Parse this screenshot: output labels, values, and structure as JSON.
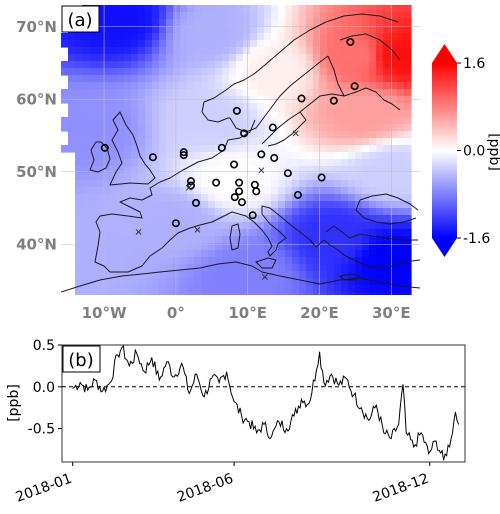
{
  "figure": {
    "panel_a_tag": "(a)",
    "panel_b_tag": "(b)"
  },
  "chart_data": [
    {
      "type": "heatmap",
      "panel": "(a)",
      "map_region": "Europe",
      "title": "",
      "xlabel": "",
      "ylabel": "",
      "lon_range": [
        -16,
        34
      ],
      "lat_range": [
        33,
        73
      ],
      "lon_ticks": [
        {
          "value": -10,
          "label": "10°W"
        },
        {
          "value": 0,
          "label": "0°"
        },
        {
          "value": 10,
          "label": "10°E"
        },
        {
          "value": 20,
          "label": "20°E"
        },
        {
          "value": 30,
          "label": "30°E"
        }
      ],
      "lat_ticks": [
        {
          "value": 40,
          "label": "40°N"
        },
        {
          "value": 50,
          "label": "50°N"
        },
        {
          "value": 60,
          "label": "60°N"
        },
        {
          "value": 70,
          "label": "70°N"
        }
      ],
      "grid": true,
      "colorbar": {
        "label": "[ppb]",
        "min": -1.6,
        "max": 1.6,
        "ticks": [
          {
            "value": 1.6,
            "label": "1.6"
          },
          {
            "value": 0.0,
            "label": "0.0"
          },
          {
            "value": -1.6,
            "label": "-1.6"
          }
        ],
        "colormap": "bwr",
        "colors": {
          "low": "#0000ff",
          "mid": "#ffffff",
          "high": "#ff0000"
        },
        "extend": "both",
        "placement": "right"
      },
      "field_description_points": [
        {
          "lon": -8,
          "lat": 71,
          "value": -1.5
        },
        {
          "lon": 5,
          "lat": 69,
          "value": -0.5
        },
        {
          "lon": 14,
          "lat": 64,
          "value": 0.1
        },
        {
          "lon": 25,
          "lat": 66,
          "value": 0.9
        },
        {
          "lon": 31,
          "lat": 66,
          "value": 1.5
        },
        {
          "lon": 26,
          "lat": 58,
          "value": 0.6
        },
        {
          "lon": 5,
          "lat": 57,
          "value": -0.3
        },
        {
          "lon": -12,
          "lat": 56,
          "value": -0.7
        },
        {
          "lon": 8,
          "lat": 49,
          "value": 0.0
        },
        {
          "lon": 30,
          "lat": 50,
          "value": -0.3
        },
        {
          "lon": 0,
          "lat": 43,
          "value": -0.5
        },
        {
          "lon": 22,
          "lat": 41,
          "value": -1.3
        },
        {
          "lon": 30,
          "lat": 38,
          "value": -1.6
        },
        {
          "lon": 10,
          "lat": 36,
          "value": -0.8
        },
        {
          "lon": -14,
          "lat": 38,
          "value": -0.5
        }
      ],
      "stations_circle": [
        {
          "lon": 24.3,
          "lat": 67.9
        },
        {
          "lon": 24.9,
          "lat": 61.8
        },
        {
          "lon": 17.5,
          "lat": 60.1
        },
        {
          "lon": 22.0,
          "lat": 59.8
        },
        {
          "lon": 8.5,
          "lat": 58.4
        },
        {
          "lon": 13.5,
          "lat": 56.1
        },
        {
          "lon": 9.5,
          "lat": 55.3
        },
        {
          "lon": -9.9,
          "lat": 53.3
        },
        {
          "lon": -3.2,
          "lat": 52.0
        },
        {
          "lon": 1.1,
          "lat": 52.7
        },
        {
          "lon": 1.1,
          "lat": 52.3
        },
        {
          "lon": 6.4,
          "lat": 53.3
        },
        {
          "lon": 11.9,
          "lat": 52.4
        },
        {
          "lon": 13.7,
          "lat": 51.9
        },
        {
          "lon": 8.1,
          "lat": 51.0
        },
        {
          "lon": 15.6,
          "lat": 49.8
        },
        {
          "lon": 2.1,
          "lat": 48.7
        },
        {
          "lon": 2.1,
          "lat": 48.1
        },
        {
          "lon": 5.6,
          "lat": 48.5
        },
        {
          "lon": 8.8,
          "lat": 48.5
        },
        {
          "lon": 11.0,
          "lat": 48.2
        },
        {
          "lon": 11.2,
          "lat": 47.3
        },
        {
          "lon": 8.8,
          "lat": 47.3
        },
        {
          "lon": 8.2,
          "lat": 46.5
        },
        {
          "lon": 9.2,
          "lat": 45.8
        },
        {
          "lon": 17.0,
          "lat": 46.8
        },
        {
          "lon": 20.3,
          "lat": 49.2
        },
        {
          "lon": 2.8,
          "lat": 45.7
        },
        {
          "lon": 10.7,
          "lat": 44.0
        },
        {
          "lon": 0.0,
          "lat": 42.9
        }
      ],
      "stations_cross": [
        {
          "lon": 16.7,
          "lat": 55.3
        },
        {
          "lon": 1.8,
          "lat": 47.8
        },
        {
          "lon": 11.9,
          "lat": 50.2
        },
        {
          "lon": -5.2,
          "lat": 41.7
        },
        {
          "lon": 3.0,
          "lat": 42.0
        },
        {
          "lon": 12.4,
          "lat": 35.5
        }
      ]
    },
    {
      "type": "line",
      "panel": "(b)",
      "title": "",
      "xlabel": "",
      "ylabel": "[ppb]",
      "ylim": [
        -0.9,
        0.5
      ],
      "xlim": [
        "2017-12-22",
        "2019-01-03"
      ],
      "xticks": [
        "2018-01",
        "2018-06",
        "2018-12"
      ],
      "yticks": [
        {
          "value": 0.5,
          "label": "0.5"
        },
        {
          "value": 0.0,
          "label": "0.0"
        },
        {
          "value": -0.5,
          "label": "-0.5"
        }
      ],
      "reference_line": {
        "y": 0.0,
        "style": "dashed"
      },
      "series": [
        {
          "color": "#000000",
          "points": [
            [
              "2018-01-01",
              -0.02
            ],
            [
              "2018-01-08",
              0.05
            ],
            [
              "2018-01-15",
              -0.04
            ],
            [
              "2018-01-22",
              0.08
            ],
            [
              "2018-01-29",
              -0.05
            ],
            [
              "2018-02-05",
              0.05
            ],
            [
              "2018-02-12",
              0.38
            ],
            [
              "2018-02-16",
              0.47
            ],
            [
              "2018-02-23",
              0.25
            ],
            [
              "2018-03-02",
              0.4
            ],
            [
              "2018-03-09",
              0.18
            ],
            [
              "2018-03-16",
              0.35
            ],
            [
              "2018-03-23",
              0.08
            ],
            [
              "2018-03-30",
              0.3
            ],
            [
              "2018-04-06",
              0.12
            ],
            [
              "2018-04-13",
              0.28
            ],
            [
              "2018-04-20",
              -0.08
            ],
            [
              "2018-04-27",
              0.15
            ],
            [
              "2018-05-04",
              -0.12
            ],
            [
              "2018-05-11",
              0.1
            ],
            [
              "2018-05-18",
              0.05
            ],
            [
              "2018-05-25",
              0.18
            ],
            [
              "2018-06-01",
              -0.18
            ],
            [
              "2018-06-08",
              -0.35
            ],
            [
              "2018-06-15",
              -0.42
            ],
            [
              "2018-06-22",
              -0.55
            ],
            [
              "2018-06-29",
              -0.45
            ],
            [
              "2018-07-06",
              -0.6
            ],
            [
              "2018-07-13",
              -0.42
            ],
            [
              "2018-07-20",
              -0.5
            ],
            [
              "2018-07-27",
              -0.35
            ],
            [
              "2018-08-03",
              -0.15
            ],
            [
              "2018-08-10",
              -0.2
            ],
            [
              "2018-08-17",
              0.2
            ],
            [
              "2018-08-20",
              0.42
            ],
            [
              "2018-08-24",
              0.05
            ],
            [
              "2018-08-31",
              0.15
            ],
            [
              "2018-09-07",
              0.02
            ],
            [
              "2018-09-14",
              0.1
            ],
            [
              "2018-09-21",
              -0.1
            ],
            [
              "2018-09-28",
              -0.25
            ],
            [
              "2018-10-05",
              -0.4
            ],
            [
              "2018-10-12",
              -0.22
            ],
            [
              "2018-10-19",
              -0.55
            ],
            [
              "2018-10-26",
              -0.62
            ],
            [
              "2018-11-02",
              -0.45
            ],
            [
              "2018-11-06",
              0.03
            ],
            [
              "2018-11-09",
              -0.55
            ],
            [
              "2018-11-16",
              -0.72
            ],
            [
              "2018-11-23",
              -0.55
            ],
            [
              "2018-11-30",
              -0.8
            ],
            [
              "2018-12-07",
              -0.65
            ],
            [
              "2018-12-14",
              -0.88
            ],
            [
              "2018-12-21",
              -0.62
            ],
            [
              "2018-12-25",
              -0.3
            ],
            [
              "2018-12-28",
              -0.45
            ]
          ]
        }
      ]
    }
  ]
}
